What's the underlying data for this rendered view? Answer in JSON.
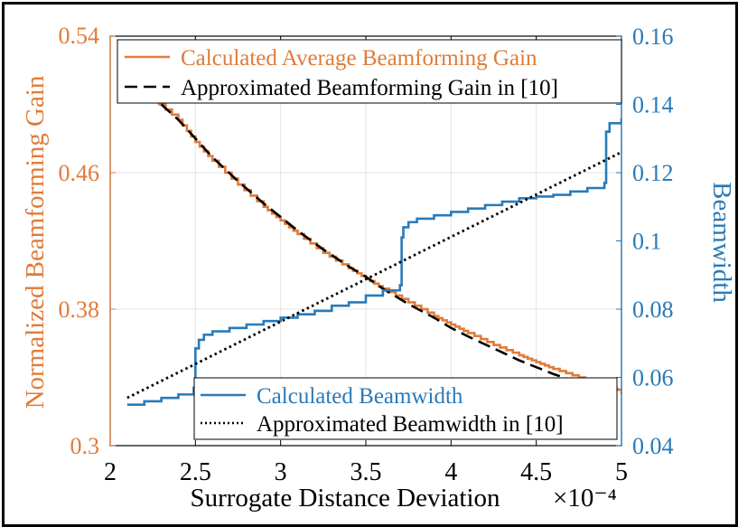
{
  "chart_data": {
    "type": "line",
    "x_axis": {
      "label": "Surrogate Distance Deviation",
      "multiplier": "×10⁻⁴",
      "range": [
        2,
        5
      ],
      "ticks": [
        2,
        2.5,
        3,
        3.5,
        4,
        4.5,
        5
      ],
      "tick_labels": [
        "2",
        "2.5",
        "3",
        "3.5",
        "4",
        "4.5",
        "5"
      ]
    },
    "y_left": {
      "label": "Normalized Beamforming Gain",
      "range": [
        0.3,
        0.54
      ],
      "ticks": [
        0.3,
        0.38,
        0.46,
        0.54
      ],
      "tick_labels": [
        "0.3",
        "0.38",
        "0.46",
        "0.54"
      ],
      "color": "#e07b39"
    },
    "y_right": {
      "label": "Beamwidth",
      "range": [
        0.04,
        0.16
      ],
      "ticks": [
        0.04,
        0.06,
        0.08,
        0.1,
        0.12,
        0.14,
        0.16
      ],
      "tick_labels": [
        "0.04",
        "0.06",
        "0.08",
        "0.1",
        "0.12",
        "0.14",
        "0.16"
      ],
      "color": "#2a7ab8"
    },
    "grid": true,
    "series": [
      {
        "name": "Calculated Average Beamforming Gain",
        "axis": "left",
        "style": "solid",
        "color": "#e07b39",
        "x": [
          2.1,
          2.25,
          2.4,
          2.5,
          2.6,
          2.75,
          2.9,
          3.0,
          3.1,
          3.25,
          3.4,
          3.5,
          3.6,
          3.75,
          3.9,
          4.0,
          4.1,
          4.25,
          4.4,
          4.5,
          4.6,
          4.75,
          4.9,
          5.0
        ],
        "values": [
          0.515,
          0.503,
          0.491,
          0.478,
          0.467,
          0.453,
          0.44,
          0.432,
          0.424,
          0.413,
          0.404,
          0.398,
          0.392,
          0.384,
          0.376,
          0.371,
          0.366,
          0.359,
          0.353,
          0.349,
          0.345,
          0.34,
          0.335,
          0.332
        ]
      },
      {
        "name": "Approximated Beamforming Gain in [10]",
        "axis": "left",
        "style": "dashed",
        "color": "#000000",
        "x": [
          2.3,
          2.4,
          2.5,
          2.6,
          2.75,
          2.9,
          3.0,
          3.1,
          3.25,
          3.4,
          3.5,
          3.6,
          3.75,
          3.9,
          4.0,
          4.1,
          4.25,
          4.4,
          4.5,
          4.6,
          4.75,
          4.9,
          5.0
        ],
        "values": [
          0.5,
          0.491,
          0.48,
          0.469,
          0.455,
          0.442,
          0.434,
          0.426,
          0.415,
          0.405,
          0.399,
          0.392,
          0.383,
          0.375,
          0.369,
          0.364,
          0.357,
          0.35,
          0.346,
          0.342,
          0.337,
          0.333,
          0.331
        ]
      },
      {
        "name": "Calculated Beamwidth",
        "axis": "right",
        "style": "solid-step",
        "color": "#2a7ab8",
        "x": [
          2.1,
          2.2,
          2.3,
          2.4,
          2.49,
          2.5,
          2.52,
          2.55,
          2.6,
          2.7,
          2.8,
          2.9,
          3.0,
          3.1,
          3.2,
          3.3,
          3.4,
          3.5,
          3.6,
          3.7,
          3.71,
          3.72,
          3.75,
          3.8,
          3.9,
          4.0,
          4.1,
          4.2,
          4.3,
          4.4,
          4.5,
          4.6,
          4.7,
          4.8,
          4.9,
          4.91,
          4.93,
          5.0
        ],
        "values": [
          0.052,
          0.053,
          0.054,
          0.055,
          0.057,
          0.0685,
          0.071,
          0.0725,
          0.0735,
          0.0745,
          0.0755,
          0.0765,
          0.0775,
          0.0785,
          0.0795,
          0.081,
          0.082,
          0.084,
          0.0855,
          0.087,
          0.101,
          0.104,
          0.1055,
          0.1065,
          0.1075,
          0.1085,
          0.1095,
          0.1105,
          0.1115,
          0.1125,
          0.113,
          0.1135,
          0.1145,
          0.1155,
          0.117,
          0.132,
          0.1345,
          0.136
        ]
      },
      {
        "name": "Approximated Beamwidth in [10]",
        "axis": "right",
        "style": "dotted",
        "color": "#000000",
        "x": [
          2.1,
          5.0
        ],
        "values": [
          0.054,
          0.126
        ]
      }
    ],
    "legends": [
      {
        "placement": "top",
        "entries": [
          "Calculated Average Beamforming Gain",
          "Approximated Beamforming Gain in [10]"
        ]
      },
      {
        "placement": "bottom-right",
        "entries": [
          "Calculated Beamwidth",
          "Approximated Beamwidth in [10]"
        ]
      }
    ]
  }
}
